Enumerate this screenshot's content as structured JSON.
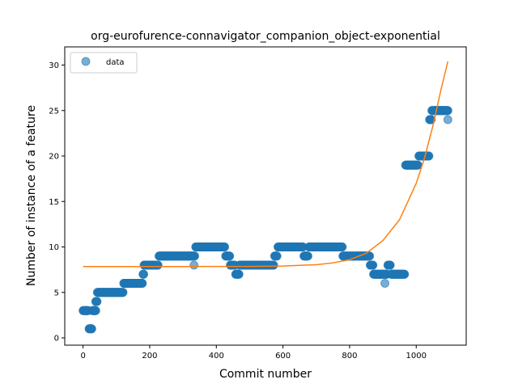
{
  "chart_data": {
    "type": "scatter",
    "title": "org-eurofurence-connavigator_companion_object-exponential",
    "xlabel": "Commit number",
    "ylabel": "Number of instance of a feature",
    "xlim": [
      -55,
      1150
    ],
    "ylim": [
      -0.8,
      32
    ],
    "xticks": [
      0,
      200,
      400,
      600,
      800,
      1000
    ],
    "yticks": [
      0,
      5,
      10,
      15,
      20,
      25,
      30
    ],
    "grid": false,
    "legend": {
      "placement": "upper-left",
      "entries": [
        "data"
      ]
    },
    "colors": {
      "data": "#1f77b4",
      "fit": "#ff7f0e",
      "axes": "#000000"
    },
    "series": [
      {
        "name": "data",
        "kind": "scatter",
        "segments": [
          {
            "x_start": 0,
            "x_end": 15,
            "y": 3
          },
          {
            "x_start": 18,
            "x_end": 26,
            "y": 1
          },
          {
            "x_start": 28,
            "x_end": 38,
            "y": 3
          },
          {
            "x_start": 38,
            "x_end": 42,
            "y": 4
          },
          {
            "x_start": 43,
            "x_end": 120,
            "y": 5
          },
          {
            "x_start": 122,
            "x_end": 178,
            "y": 6
          },
          {
            "x_start": 180,
            "x_end": 182,
            "y": 7
          },
          {
            "x_start": 183,
            "x_end": 225,
            "y": 8
          },
          {
            "x_start": 228,
            "x_end": 335,
            "y": 9
          },
          {
            "x_start": 338,
            "x_end": 425,
            "y": 10
          },
          {
            "x_start": 428,
            "x_end": 440,
            "y": 9
          },
          {
            "x_start": 442,
            "x_end": 455,
            "y": 8
          },
          {
            "x_start": 458,
            "x_end": 468,
            "y": 7
          },
          {
            "x_start": 470,
            "x_end": 572,
            "y": 8
          },
          {
            "x_start": 575,
            "x_end": 582,
            "y": 9
          },
          {
            "x_start": 585,
            "x_end": 660,
            "y": 10
          },
          {
            "x_start": 663,
            "x_end": 675,
            "y": 9
          },
          {
            "x_start": 678,
            "x_end": 778,
            "y": 10
          },
          {
            "x_start": 780,
            "x_end": 860,
            "y": 9
          },
          {
            "x_start": 862,
            "x_end": 870,
            "y": 8
          },
          {
            "x_start": 872,
            "x_end": 912,
            "y": 7
          },
          {
            "x_start": 915,
            "x_end": 922,
            "y": 8
          },
          {
            "x_start": 925,
            "x_end": 965,
            "y": 7
          },
          {
            "x_start": 968,
            "x_end": 1005,
            "y": 19
          },
          {
            "x_start": 1008,
            "x_end": 1038,
            "y": 20
          },
          {
            "x_start": 1040,
            "x_end": 1045,
            "y": 24
          },
          {
            "x_start": 1047,
            "x_end": 1095,
            "y": 25
          }
        ],
        "points": [
          {
            "x": 333,
            "y": 8
          },
          {
            "x": 906,
            "y": 6
          },
          {
            "x": 1095,
            "y": 24
          }
        ]
      },
      {
        "kind": "line",
        "x": [
          0,
          100,
          200,
          300,
          400,
          500,
          600,
          700,
          750,
          800,
          850,
          900,
          950,
          1000,
          1025,
          1050,
          1075,
          1095
        ],
        "y": [
          7.85,
          7.85,
          7.85,
          7.85,
          7.86,
          7.86,
          7.9,
          8.05,
          8.25,
          8.6,
          9.3,
          10.7,
          13.0,
          17.0,
          19.8,
          23.3,
          27.4,
          30.4
        ]
      }
    ]
  }
}
